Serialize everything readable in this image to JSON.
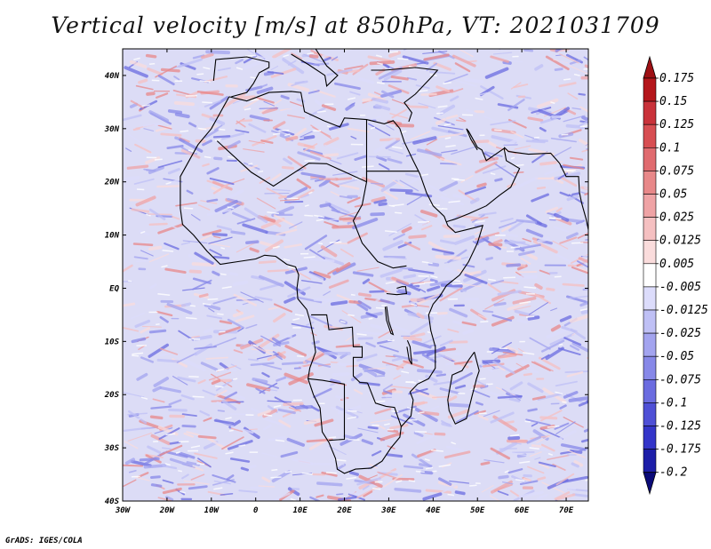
{
  "title": "Vertical velocity [m/s] at 850hPa, VT: 2021031709",
  "credit": "GrADS: IGES/COLA",
  "map": {
    "lon_range": [
      -30,
      75
    ],
    "lat_range": [
      -40,
      45
    ],
    "lat_labels": [
      "40N",
      "30N",
      "20N",
      "10N",
      "EQ",
      "10S",
      "20S",
      "30S",
      "40S"
    ],
    "lat_values": [
      40,
      30,
      20,
      10,
      0,
      -10,
      -20,
      -30,
      -40
    ],
    "lon_labels": [
      "30W",
      "20W",
      "10W",
      "0",
      "10E",
      "20E",
      "30E",
      "40E",
      "50E",
      "60E",
      "70E"
    ],
    "lon_values": [
      -30,
      -20,
      -10,
      0,
      10,
      20,
      30,
      40,
      50,
      60,
      70
    ]
  },
  "colorbar": {
    "labels": [
      "0.175",
      "0.15",
      "0.125",
      "0.1",
      "0.075",
      "0.05",
      "0.025",
      "0.0125",
      "0.005",
      "-0.005",
      "-0.0125",
      "-0.025",
      "-0.05",
      "-0.075",
      "-0.1",
      "-0.125",
      "-0.175",
      "-0.2"
    ],
    "colors": [
      "#b4161b",
      "#c9323a",
      "#d74e52",
      "#e06b6f",
      "#e88889",
      "#efa3a5",
      "#f5c0c1",
      "#fadcdc",
      "#ffffff",
      "#dcdcfb",
      "#bfc0f5",
      "#a3a4ef",
      "#8788e8",
      "#6b6ce0",
      "#4f50d6",
      "#3435c9",
      "#1d1ea8",
      "#10108a"
    ],
    "top_arrow_color": "#9e1014",
    "bottom_arrow_color": "#0a0a78"
  }
}
